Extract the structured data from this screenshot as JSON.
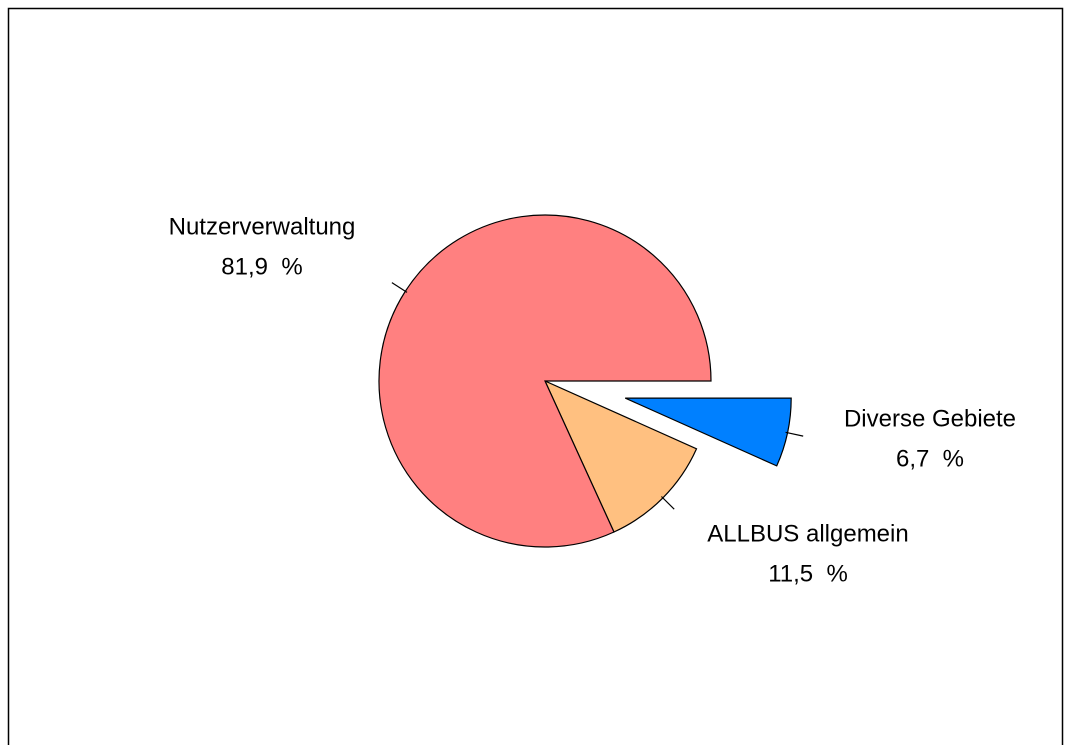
{
  "chart_data": {
    "type": "pie",
    "categories": [
      "Diverse Gebiete",
      "ALLBUS allgemein",
      "Nutzerverwaltung"
    ],
    "values": [
      6.7,
      11.5,
      81.9
    ],
    "value_labels": [
      "6,7  %",
      "11,5  %",
      "81,9  %"
    ],
    "colors": [
      "#0080ff",
      "#ffc080",
      "#ff8080"
    ]
  }
}
